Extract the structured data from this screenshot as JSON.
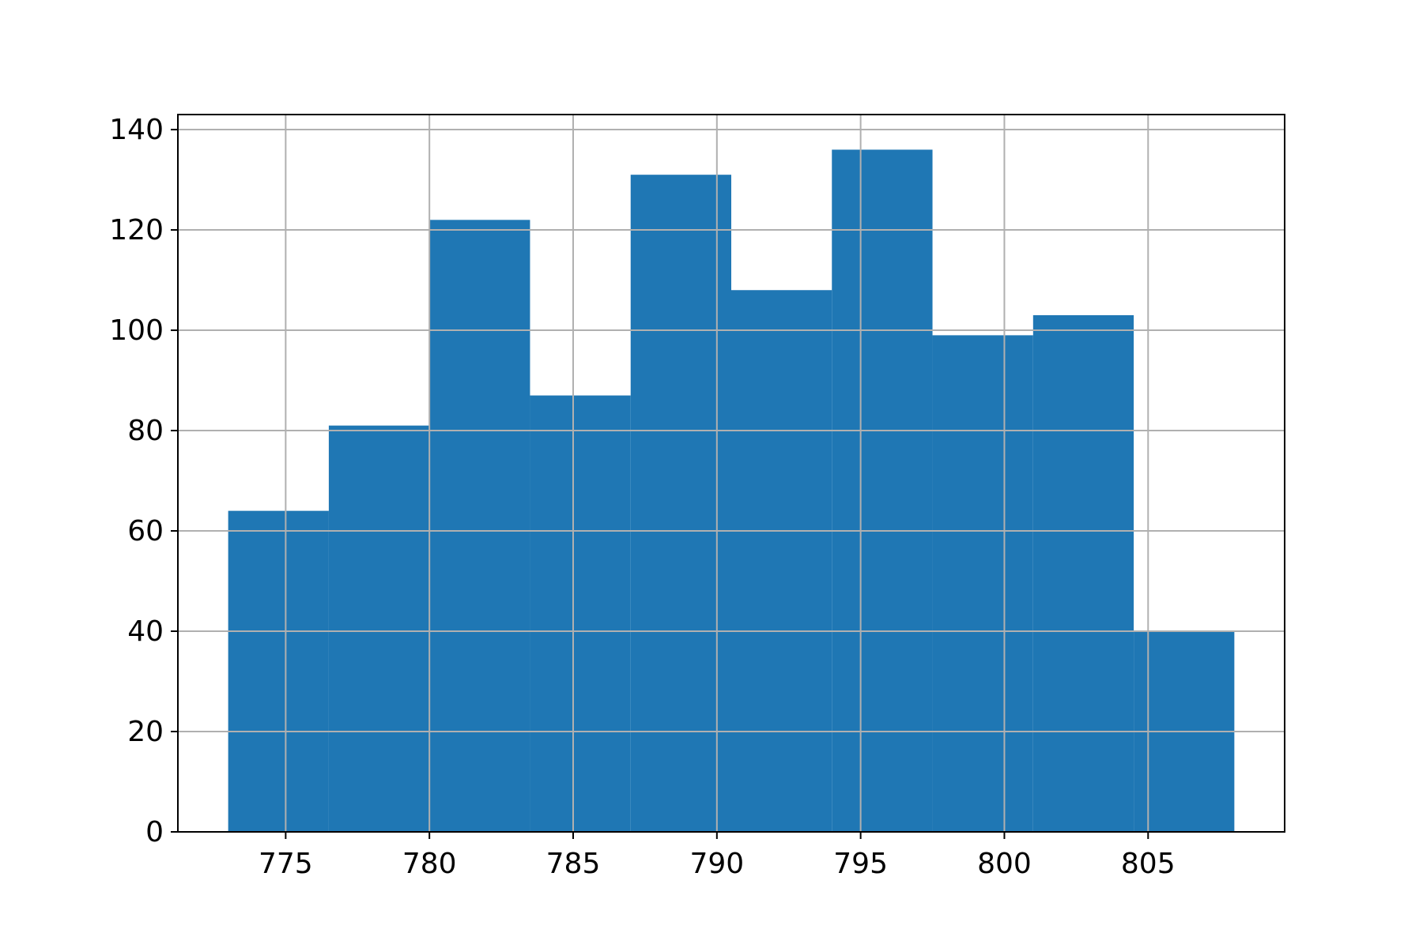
{
  "chart_data": {
    "type": "bar",
    "title": "",
    "xlabel": "",
    "ylabel": "",
    "bin_edges": [
      773.0,
      776.5,
      780.0,
      783.5,
      787.0,
      790.5,
      794.0,
      797.5,
      801.0,
      804.5,
      808.0
    ],
    "values": [
      64,
      81,
      122,
      87,
      131,
      108,
      136,
      99,
      103,
      40
    ],
    "xlim": [
      771.25,
      809.75
    ],
    "ylim": [
      0,
      143
    ],
    "xticks": [
      775,
      780,
      785,
      790,
      795,
      800,
      805
    ],
    "xtick_labels": [
      "775",
      "780",
      "785",
      "790",
      "795",
      "800",
      "805"
    ],
    "yticks": [
      0,
      20,
      40,
      60,
      80,
      100,
      120,
      140
    ],
    "ytick_labels": [
      "0",
      "20",
      "40",
      "60",
      "80",
      "100",
      "120",
      "140"
    ],
    "grid": true,
    "bar_color": "#1f77b4",
    "grid_color": "#b0b0b0"
  }
}
